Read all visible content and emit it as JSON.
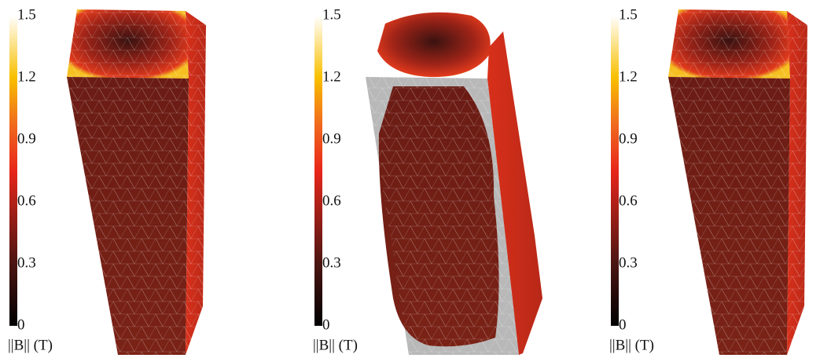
{
  "panels": [
    {
      "colorbar": {
        "ticks": [
          0,
          0.3,
          0.6,
          0.9,
          1.2,
          1.5
        ],
        "label": "||B|| (T)"
      }
    },
    {
      "colorbar": {
        "ticks": [
          0,
          0.3,
          0.6,
          0.9,
          1.2,
          1.5
        ],
        "label": "||B|| (T)"
      }
    },
    {
      "colorbar": {
        "ticks": [
          0,
          0.3,
          0.6,
          0.9,
          1.2,
          1.5
        ],
        "label": "||B|| (T)"
      }
    }
  ]
}
